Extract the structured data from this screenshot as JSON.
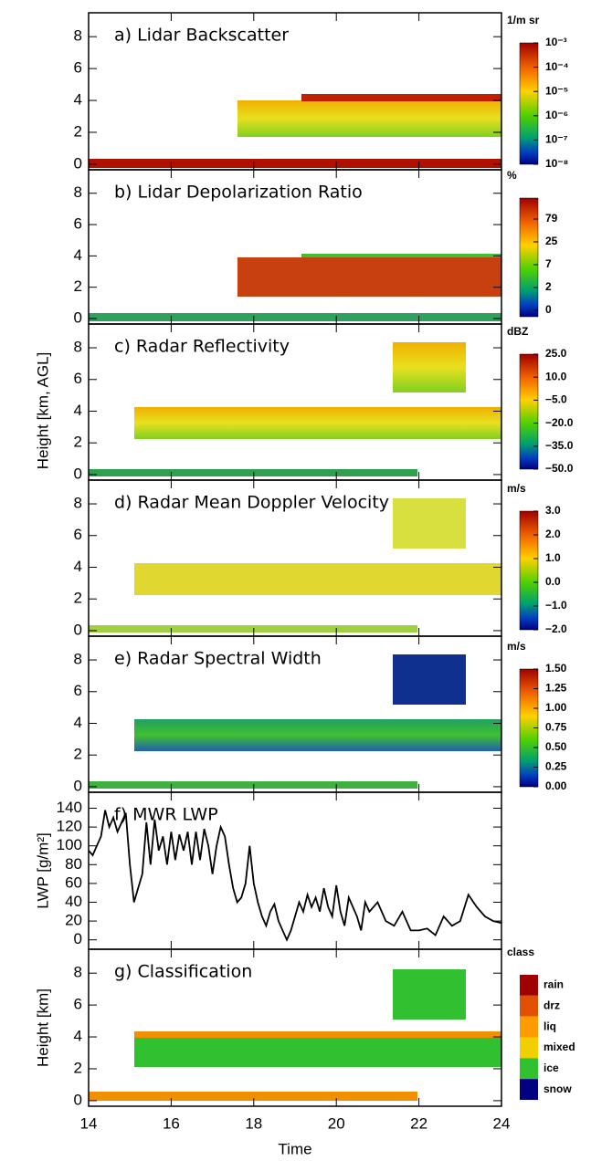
{
  "ylabel": "Height [km, AGL]",
  "chart_data": [
    {
      "type": "heatmap",
      "title": "a) Lidar Backscatter",
      "xlim": [
        14,
        24
      ],
      "ylim": [
        -0.35,
        9.5
      ],
      "yticks": [
        0,
        2,
        4,
        6,
        8
      ],
      "colorbar": {
        "label": "1/m sr",
        "scale": "log",
        "clim": [
          1e-08,
          0.001
        ],
        "ticks": [
          {
            "value": 0.001,
            "label": "10⁻³"
          },
          {
            "value": 0.0001,
            "label": "10⁻⁴"
          },
          {
            "value": 1e-05,
            "label": "10⁻⁵"
          },
          {
            "value": 1e-06,
            "label": "10⁻⁶"
          },
          {
            "value": 1e-07,
            "label": "10⁻⁷"
          },
          {
            "value": 1e-08,
            "label": "10⁻⁸"
          }
        ]
      }
    },
    {
      "type": "heatmap",
      "title": "b) Lidar Depolarization Ratio",
      "xlim": [
        14,
        24
      ],
      "ylim": [
        -0.35,
        9.5
      ],
      "yticks": [
        0,
        2,
        4,
        6,
        8
      ],
      "colorbar": {
        "label": "%",
        "ticks": [
          79,
          25,
          7,
          2,
          0
        ]
      }
    },
    {
      "type": "heatmap",
      "title": "c) Radar Reflectivity",
      "xlim": [
        14,
        24
      ],
      "ylim": [
        -0.35,
        9.5
      ],
      "yticks": [
        0,
        2,
        4,
        6,
        8
      ],
      "colorbar": {
        "label": "dBZ",
        "scale": "linear",
        "clim": [
          -50,
          25
        ],
        "ticks": [
          {
            "value": 25,
            "label": "25.0"
          },
          {
            "value": 10,
            "label": "10.0"
          },
          {
            "value": -5,
            "label": "−5.0"
          },
          {
            "value": -20,
            "label": "−20.0"
          },
          {
            "value": -35,
            "label": "−35.0"
          },
          {
            "value": -50,
            "label": "−50.0"
          }
        ]
      }
    },
    {
      "type": "heatmap",
      "title": "d) Radar Mean Doppler Velocity",
      "xlim": [
        14,
        24
      ],
      "ylim": [
        -0.35,
        9.5
      ],
      "yticks": [
        0,
        2,
        4,
        6,
        8
      ],
      "colorbar": {
        "label": "m/s",
        "scale": "linear",
        "clim": [
          -2,
          3
        ],
        "ticks": [
          {
            "value": 3,
            "label": "3.0"
          },
          {
            "value": 2,
            "label": "2.0"
          },
          {
            "value": 1,
            "label": "1.0"
          },
          {
            "value": 0,
            "label": "0.0"
          },
          {
            "value": -1,
            "label": "−1.0"
          },
          {
            "value": -2,
            "label": "−2.0"
          }
        ]
      }
    },
    {
      "type": "heatmap",
      "title": "e) Radar Spectral Width",
      "xlim": [
        14,
        24
      ],
      "ylim": [
        -0.35,
        9.5
      ],
      "yticks": [
        0,
        2,
        4,
        6,
        8
      ],
      "colorbar": {
        "label": "m/s",
        "scale": "linear",
        "clim": [
          0,
          1.5
        ],
        "ticks": [
          {
            "value": 1.5,
            "label": "1.50"
          },
          {
            "value": 1.25,
            "label": "1.25"
          },
          {
            "value": 1,
            "label": "1.00"
          },
          {
            "value": 0.75,
            "label": "0.75"
          },
          {
            "value": 0.5,
            "label": "0.50"
          },
          {
            "value": 0.25,
            "label": "0.25"
          },
          {
            "value": 0,
            "label": "0.00"
          }
        ]
      }
    },
    {
      "type": "line",
      "title": "f) MWR LWP",
      "ylabel": "LWP [g/m²]",
      "xlim": [
        14,
        24
      ],
      "ylim": [
        -10,
        157
      ],
      "yticks": [
        0,
        20,
        40,
        60,
        80,
        100,
        120,
        140
      ],
      "color": "#000000",
      "x": [
        14.0,
        14.1,
        14.2,
        14.3,
        14.4,
        14.5,
        14.6,
        14.7,
        14.8,
        14.9,
        15.0,
        15.1,
        15.2,
        15.3,
        15.4,
        15.5,
        15.6,
        15.7,
        15.8,
        15.9,
        16.0,
        16.1,
        16.2,
        16.3,
        16.4,
        16.5,
        16.6,
        16.7,
        16.8,
        16.9,
        17.0,
        17.1,
        17.2,
        17.3,
        17.4,
        17.5,
        17.6,
        17.7,
        17.8,
        17.9,
        18.0,
        18.1,
        18.2,
        18.3,
        18.4,
        18.5,
        18.6,
        18.7,
        18.8,
        18.9,
        19.0,
        19.1,
        19.2,
        19.3,
        19.4,
        19.5,
        19.6,
        19.7,
        19.8,
        19.9,
        20.0,
        20.1,
        20.2,
        20.3,
        20.4,
        20.5,
        20.6,
        20.7,
        20.8,
        20.9,
        21.0,
        21.2,
        21.4,
        21.6,
        21.8,
        22.0,
        22.2,
        22.4,
        22.6,
        22.8,
        23.0,
        23.2,
        23.4,
        23.6,
        23.8,
        24.0
      ],
      "values": [
        95,
        90,
        100,
        110,
        138,
        120,
        130,
        115,
        125,
        135,
        80,
        40,
        55,
        70,
        125,
        80,
        128,
        95,
        110,
        80,
        115,
        85,
        112,
        95,
        115,
        80,
        115,
        85,
        118,
        100,
        70,
        100,
        120,
        110,
        80,
        55,
        40,
        45,
        60,
        100,
        60,
        40,
        25,
        15,
        30,
        38,
        20,
        10,
        0,
        10,
        25,
        40,
        30,
        48,
        35,
        45,
        30,
        55,
        35,
        25,
        58,
        30,
        15,
        45,
        35,
        25,
        10,
        40,
        30,
        35,
        40,
        20,
        15,
        30,
        10,
        10,
        12,
        5,
        25,
        15,
        20,
        48,
        35,
        25,
        20,
        18
      ]
    },
    {
      "type": "classification",
      "title": "g) Classification",
      "ylabel": "Height [km]",
      "xlabel": "Time",
      "xlim": [
        14,
        24
      ],
      "ylim": [
        -0.35,
        9.5
      ],
      "yticks": [
        0,
        2,
        4,
        6,
        8
      ],
      "xticks": [
        14,
        16,
        18,
        20,
        22,
        24
      ],
      "colorbar": {
        "label": "class"
      },
      "classes": [
        {
          "name": "rain",
          "color": "#a00000"
        },
        {
          "name": "drz",
          "color": "#e05000"
        },
        {
          "name": "liq",
          "color": "#ff9a00"
        },
        {
          "name": "mixed",
          "color": "#f0d000"
        },
        {
          "name": "ice",
          "color": "#30c030"
        },
        {
          "name": "snow",
          "color": "#000080"
        }
      ]
    }
  ]
}
